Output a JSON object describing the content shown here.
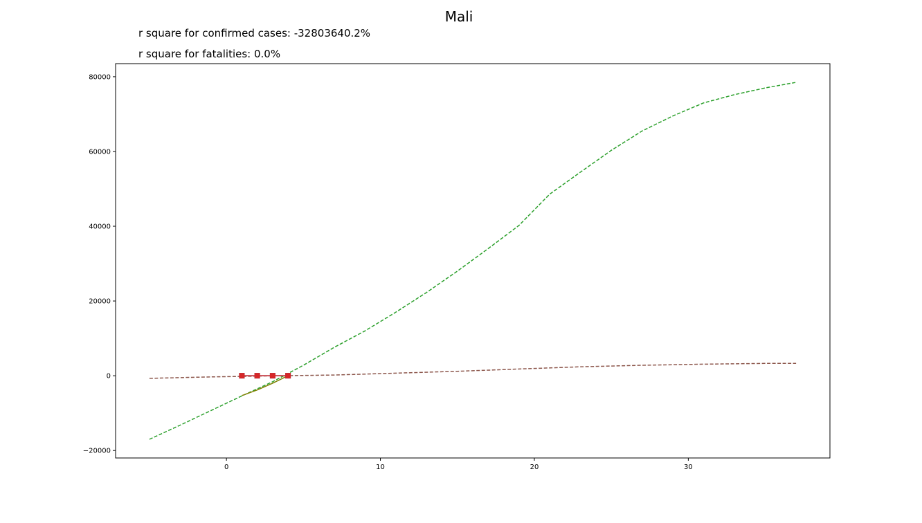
{
  "chart_data": {
    "type": "line",
    "title": "Mali",
    "annotations": [
      "r square for confirmed cases: -32803640.2%",
      "r square for fatalities: 0.0%"
    ],
    "xlabel": "",
    "ylabel": "",
    "xlim": [
      -7.2,
      39.2
    ],
    "ylim": [
      -22000,
      83500
    ],
    "x_ticks": [
      0,
      10,
      20,
      30
    ],
    "y_ticks": [
      -20000,
      0,
      20000,
      40000,
      60000,
      80000
    ],
    "grid": false,
    "legend": "none",
    "series": [
      {
        "style": "dashed",
        "color": "#2ca02c",
        "x": [
          -5,
          -3,
          -1,
          1,
          3,
          5,
          7,
          9,
          11,
          13,
          15,
          17,
          19,
          21,
          23,
          25,
          27,
          29,
          31,
          33,
          35,
          37
        ],
        "y": [
          -17000,
          -13200,
          -9300,
          -5400,
          -1600,
          2800,
          7600,
          12000,
          17000,
          22300,
          28000,
          34000,
          40200,
          48600,
          54500,
          60300,
          65500,
          69500,
          73000,
          75200,
          77000,
          78500
        ]
      },
      {
        "style": "dashed",
        "color": "#8c564b",
        "x": [
          -5,
          -1,
          3,
          7,
          11,
          15,
          19,
          23,
          27,
          31,
          35,
          37
        ],
        "y": [
          -700,
          -300,
          -30,
          200,
          700,
          1200,
          1800,
          2400,
          2800,
          3100,
          3300,
          3300
        ]
      },
      {
        "style": "solid",
        "color": "#808000",
        "x": [
          1,
          2,
          3,
          4
        ],
        "y": [
          -5300,
          -3800,
          -2000,
          0
        ]
      },
      {
        "style": "solid-square-markers",
        "color": "#1f77b4",
        "x": [
          1,
          2,
          3,
          4
        ],
        "y": [
          0,
          0,
          0,
          0
        ]
      },
      {
        "style": "solid-square-markers",
        "color": "#d62728",
        "x": [
          1,
          2,
          3,
          4
        ],
        "y": [
          0,
          0,
          0,
          0
        ]
      }
    ]
  }
}
